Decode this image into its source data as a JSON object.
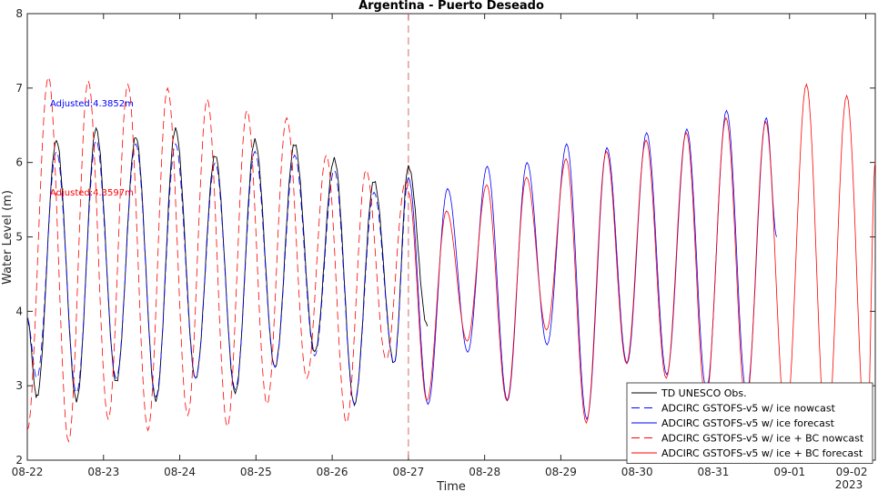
{
  "chart_data": {
    "type": "line",
    "title": "Argentina - Puerto Deseado",
    "xlabel": "Time",
    "ylabel": "Water Level (m)",
    "year_label": "2023",
    "xlim": [
      "2023-08-22 00:00",
      "2023-09-02 03:00"
    ],
    "ylim": [
      2,
      8
    ],
    "y_ticks": [
      2,
      3,
      4,
      5,
      6,
      7,
      8
    ],
    "x_ticks": [
      {
        "date": "2023-08-22",
        "label": "08-22"
      },
      {
        "date": "2023-08-23",
        "label": "08-23"
      },
      {
        "date": "2023-08-24",
        "label": "08-24"
      },
      {
        "date": "2023-08-25",
        "label": "08-25"
      },
      {
        "date": "2023-08-26",
        "label": "08-26"
      },
      {
        "date": "2023-08-27",
        "label": "08-27"
      },
      {
        "date": "2023-08-28",
        "label": "08-28"
      },
      {
        "date": "2023-08-29",
        "label": "08-29"
      },
      {
        "date": "2023-08-30",
        "label": "08-30"
      },
      {
        "date": "2023-08-31",
        "label": "08-31"
      },
      {
        "date": "2023-09-01",
        "label": "09-01"
      },
      {
        "date": "2023-09-02",
        "label": "09-02"
      }
    ],
    "nowcast_forecast_divider": "2023-08-27 00:00",
    "annotations": [
      {
        "text": "Adjusted:4.3852m",
        "color": "#0000ff"
      },
      {
        "text": "Adjusted:4.3597m",
        "color": "#ff0000"
      }
    ],
    "legend_position": "bottom-right",
    "grid": false,
    "series": [
      {
        "name": "TD UNESCO Obs.",
        "color": "#000000",
        "dash": "solid",
        "x_start": "2023-08-22 00:00",
        "x_end": "2023-08-27 06:00",
        "extrema": [
          [
            "2023-08-22 00:00",
            3.9
          ],
          [
            "2023-08-22 03:00",
            2.85
          ],
          [
            "2023-08-22 09:10",
            6.3
          ],
          [
            "2023-08-22 15:30",
            2.8
          ],
          [
            "2023-08-22 21:40",
            6.45
          ],
          [
            "2023-08-23 04:00",
            3.05
          ],
          [
            "2023-08-23 10:10",
            6.35
          ],
          [
            "2023-08-23 16:30",
            2.8
          ],
          [
            "2023-08-23 22:40",
            6.45
          ],
          [
            "2023-08-24 05:00",
            3.1
          ],
          [
            "2023-08-24 11:10",
            6.1
          ],
          [
            "2023-08-24 17:30",
            2.9
          ],
          [
            "2023-08-24 23:40",
            6.3
          ],
          [
            "2023-08-25 06:00",
            3.25
          ],
          [
            "2023-08-25 12:10",
            6.25
          ],
          [
            "2023-08-25 18:30",
            3.45
          ],
          [
            "2023-08-26 00:40",
            6.05
          ],
          [
            "2023-08-26 07:00",
            2.75
          ],
          [
            "2023-08-26 13:10",
            5.75
          ],
          [
            "2023-08-26 19:30",
            3.3
          ],
          [
            "2023-08-27 00:00",
            5.95
          ],
          [
            "2023-08-27 06:00",
            3.8
          ]
        ]
      },
      {
        "name": "ADCIRC GSTOFS-v5 w/ ice nowcast",
        "color": "#0000ff",
        "dash": "dashed",
        "x_start": "2023-08-22 00:00",
        "x_end": "2023-08-27 00:00",
        "extrema": [
          [
            "2023-08-22 00:00",
            3.9
          ],
          [
            "2023-08-22 03:00",
            3.1
          ],
          [
            "2023-08-22 09:10",
            6.15
          ],
          [
            "2023-08-22 15:30",
            2.9
          ],
          [
            "2023-08-22 21:40",
            6.3
          ],
          [
            "2023-08-23 04:00",
            3.1
          ],
          [
            "2023-08-23 10:10",
            6.25
          ],
          [
            "2023-08-23 16:30",
            2.85
          ],
          [
            "2023-08-23 22:40",
            6.25
          ],
          [
            "2023-08-24 05:00",
            3.1
          ],
          [
            "2023-08-24 11:10",
            6.0
          ],
          [
            "2023-08-24 17:30",
            2.95
          ],
          [
            "2023-08-24 23:40",
            6.15
          ],
          [
            "2023-08-25 06:00",
            3.25
          ],
          [
            "2023-08-25 12:10",
            6.1
          ],
          [
            "2023-08-25 18:30",
            3.4
          ],
          [
            "2023-08-26 00:40",
            5.9
          ],
          [
            "2023-08-26 07:00",
            2.75
          ],
          [
            "2023-08-26 13:10",
            5.6
          ],
          [
            "2023-08-26 19:30",
            3.3
          ],
          [
            "2023-08-27 00:00",
            5.8
          ]
        ]
      },
      {
        "name": "ADCIRC GSTOFS-v5 w/ ice forecast",
        "color": "#0000ff",
        "dash": "solid",
        "x_start": "2023-08-27 00:00",
        "x_end": "2023-08-31 20:00",
        "extrema": [
          [
            "2023-08-27 00:00",
            5.8
          ],
          [
            "2023-08-27 06:10",
            2.75
          ],
          [
            "2023-08-27 12:20",
            5.65
          ],
          [
            "2023-08-27 18:40",
            3.45
          ],
          [
            "2023-08-28 00:50",
            5.95
          ],
          [
            "2023-08-28 07:10",
            2.8
          ],
          [
            "2023-08-28 13:20",
            6.0
          ],
          [
            "2023-08-28 19:40",
            3.55
          ],
          [
            "2023-08-29 01:50",
            6.25
          ],
          [
            "2023-08-29 08:10",
            2.55
          ],
          [
            "2023-08-29 14:30",
            6.2
          ],
          [
            "2023-08-29 20:50",
            3.3
          ],
          [
            "2023-08-30 03:00",
            6.4
          ],
          [
            "2023-08-30 09:20",
            3.15
          ],
          [
            "2023-08-30 15:40",
            6.45
          ],
          [
            "2023-08-30 21:50",
            2.95
          ],
          [
            "2023-08-31 04:10",
            6.7
          ],
          [
            "2023-08-31 10:30",
            2.9
          ],
          [
            "2023-08-31 16:40",
            6.6
          ],
          [
            "2023-08-31 20:00",
            5.0
          ]
        ]
      },
      {
        "name": "ADCIRC GSTOFS-v5 w/ ice + BC nowcast",
        "color": "#ff0000",
        "dash": "dashed",
        "x_start": "2023-08-22 00:00",
        "x_end": "2023-08-27 00:00",
        "extrema": [
          [
            "2023-08-22 00:00",
            2.4
          ],
          [
            "2023-08-22 06:40",
            7.15
          ],
          [
            "2023-08-22 13:00",
            2.25
          ],
          [
            "2023-08-22 19:10",
            7.1
          ],
          [
            "2023-08-23 01:30",
            2.55
          ],
          [
            "2023-08-23 07:40",
            7.05
          ],
          [
            "2023-08-23 14:00",
            2.4
          ],
          [
            "2023-08-23 20:10",
            7.0
          ],
          [
            "2023-08-24 02:30",
            2.6
          ],
          [
            "2023-08-24 08:40",
            6.85
          ],
          [
            "2023-08-24 15:00",
            2.45
          ],
          [
            "2023-08-24 21:10",
            6.7
          ],
          [
            "2023-08-25 03:30",
            2.75
          ],
          [
            "2023-08-25 09:40",
            6.6
          ],
          [
            "2023-08-25 16:00",
            3.1
          ],
          [
            "2023-08-25 22:10",
            6.1
          ],
          [
            "2023-08-26 04:30",
            2.5
          ],
          [
            "2023-08-26 10:40",
            5.9
          ],
          [
            "2023-08-26 17:00",
            3.35
          ],
          [
            "2023-08-26 23:10",
            5.75
          ],
          [
            "2023-08-27 00:00",
            5.6
          ]
        ]
      },
      {
        "name": "ADCIRC GSTOFS-v5 w/ ice + BC forecast",
        "color": "#ff0000",
        "dash": "solid",
        "x_start": "2023-08-27 00:00",
        "x_end": "2023-09-02 03:00",
        "extrema": [
          [
            "2023-08-27 00:00",
            5.6
          ],
          [
            "2023-08-27 05:50",
            2.8
          ],
          [
            "2023-08-27 12:00",
            5.35
          ],
          [
            "2023-08-27 18:30",
            3.6
          ],
          [
            "2023-08-28 00:40",
            5.7
          ],
          [
            "2023-08-28 07:00",
            2.8
          ],
          [
            "2023-08-28 13:10",
            5.8
          ],
          [
            "2023-08-28 19:30",
            3.75
          ],
          [
            "2023-08-29 01:40",
            6.05
          ],
          [
            "2023-08-29 08:00",
            2.5
          ],
          [
            "2023-08-29 14:20",
            6.15
          ],
          [
            "2023-08-29 20:40",
            3.3
          ],
          [
            "2023-08-30 02:50",
            6.3
          ],
          [
            "2023-08-30 09:10",
            3.1
          ],
          [
            "2023-08-30 15:30",
            6.4
          ],
          [
            "2023-08-30 21:40",
            2.8
          ],
          [
            "2023-08-31 04:00",
            6.6
          ],
          [
            "2023-08-31 10:20",
            2.75
          ],
          [
            "2023-08-31 16:30",
            6.55
          ],
          [
            "2023-08-31 22:50",
            2.5
          ],
          [
            "2023-09-01 05:20",
            7.05
          ],
          [
            "2023-09-01 11:40",
            2.2
          ],
          [
            "2023-09-01 18:00",
            6.9
          ],
          [
            "2023-09-02 00:20",
            2.1
          ],
          [
            "2023-09-02 03:00",
            6.0
          ]
        ]
      }
    ]
  }
}
